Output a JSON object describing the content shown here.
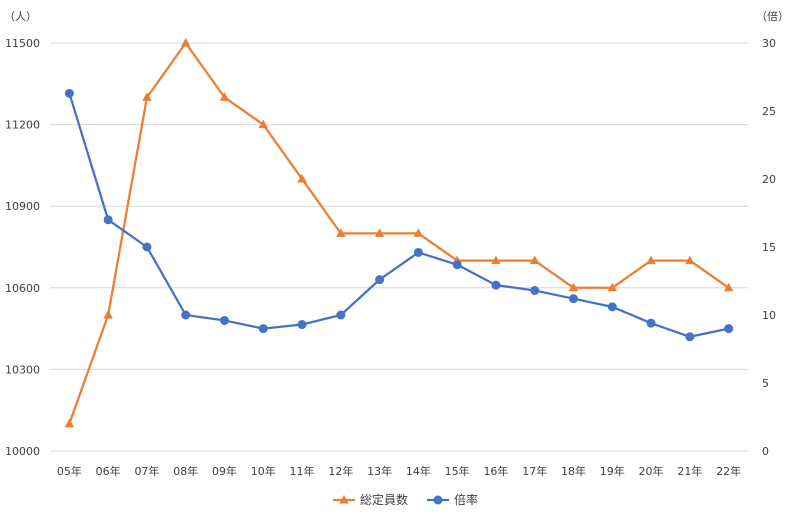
{
  "chart_data": {
    "type": "line",
    "categories": [
      "05年",
      "06年",
      "07年",
      "08年",
      "09年",
      "10年",
      "11年",
      "12年",
      "13年",
      "14年",
      "15年",
      "16年",
      "17年",
      "18年",
      "19年",
      "20年",
      "21年",
      "22年"
    ],
    "series": [
      {
        "name": "総定員数",
        "axis": "left",
        "color": "#ed7d31",
        "marker": "triangle",
        "values": [
          10100,
          10500,
          11300,
          11500,
          11300,
          11200,
          11000,
          10800,
          10800,
          10800,
          10700,
          10700,
          10700,
          10600,
          10600,
          10700,
          10700,
          10600
        ]
      },
      {
        "name": "倍率",
        "axis": "right",
        "color": "#4472c4",
        "marker": "circle",
        "values": [
          26.3,
          17.0,
          15.0,
          10.0,
          9.6,
          9.0,
          9.3,
          10.0,
          12.6,
          14.6,
          13.7,
          12.2,
          11.8,
          11.2,
          10.6,
          9.4,
          8.4,
          9.0
        ]
      }
    ],
    "y_left": {
      "unit": "（人）",
      "min": 10000,
      "max": 11500,
      "ticks": [
        10000,
        10300,
        10600,
        10900,
        11200,
        11500
      ]
    },
    "y_right": {
      "unit": "（倍）",
      "min": 0,
      "max": 30,
      "ticks": [
        0,
        5,
        10,
        15,
        20,
        25,
        30
      ]
    },
    "grid": true,
    "legend_position": "bottom"
  }
}
